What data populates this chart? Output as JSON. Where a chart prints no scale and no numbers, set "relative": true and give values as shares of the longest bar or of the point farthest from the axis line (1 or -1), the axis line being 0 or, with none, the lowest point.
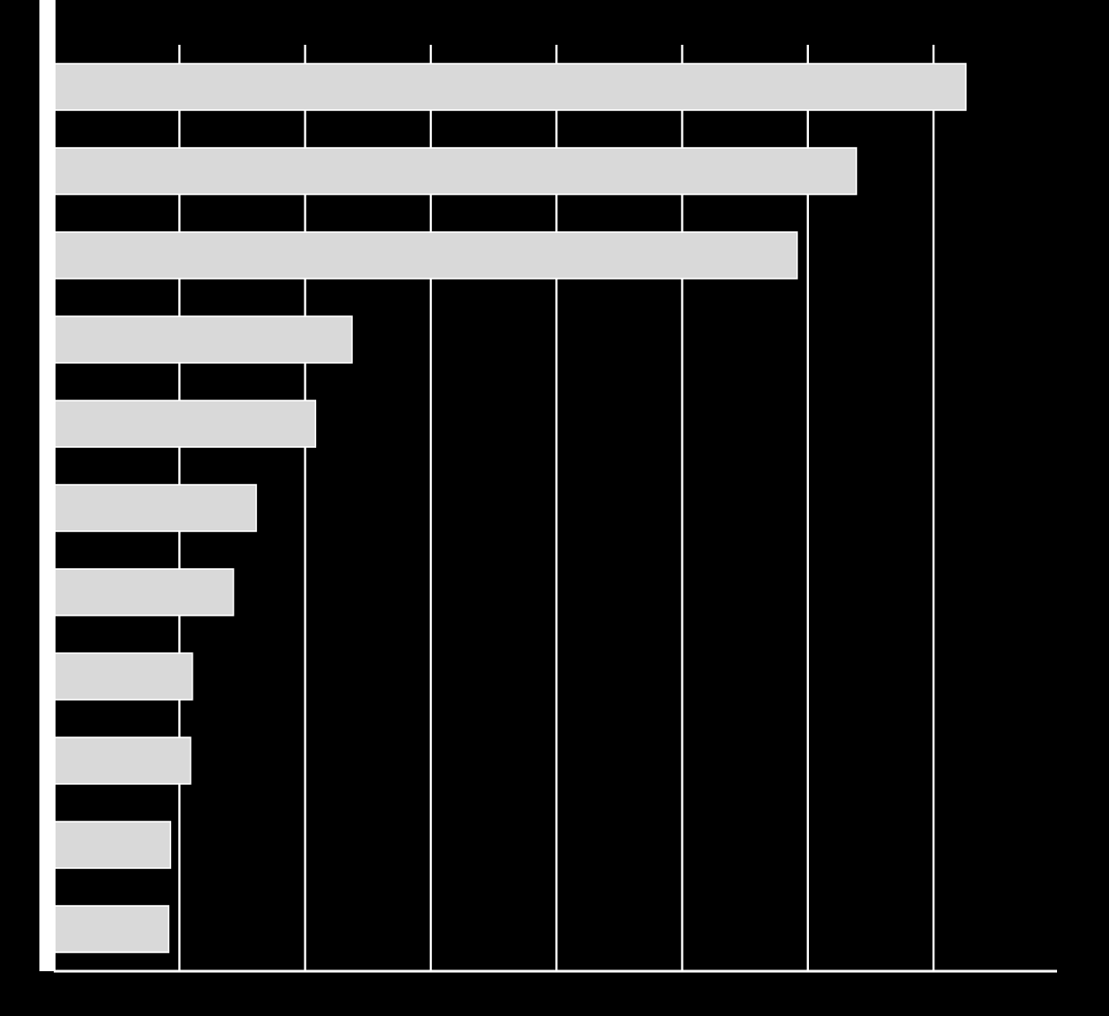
{
  "chart_data": {
    "type": "bar",
    "orientation": "horizontal",
    "relative": true,
    "grid": "x",
    "color": "#d9d9d9",
    "categories": [
      null,
      null,
      null,
      null,
      null,
      null,
      null,
      null,
      null,
      null,
      null
    ],
    "values": [
      1,
      0.88,
      0.815,
      0.327,
      0.287,
      0.222,
      0.197,
      0.152,
      0.15,
      0.128,
      0.126
    ]
  }
}
